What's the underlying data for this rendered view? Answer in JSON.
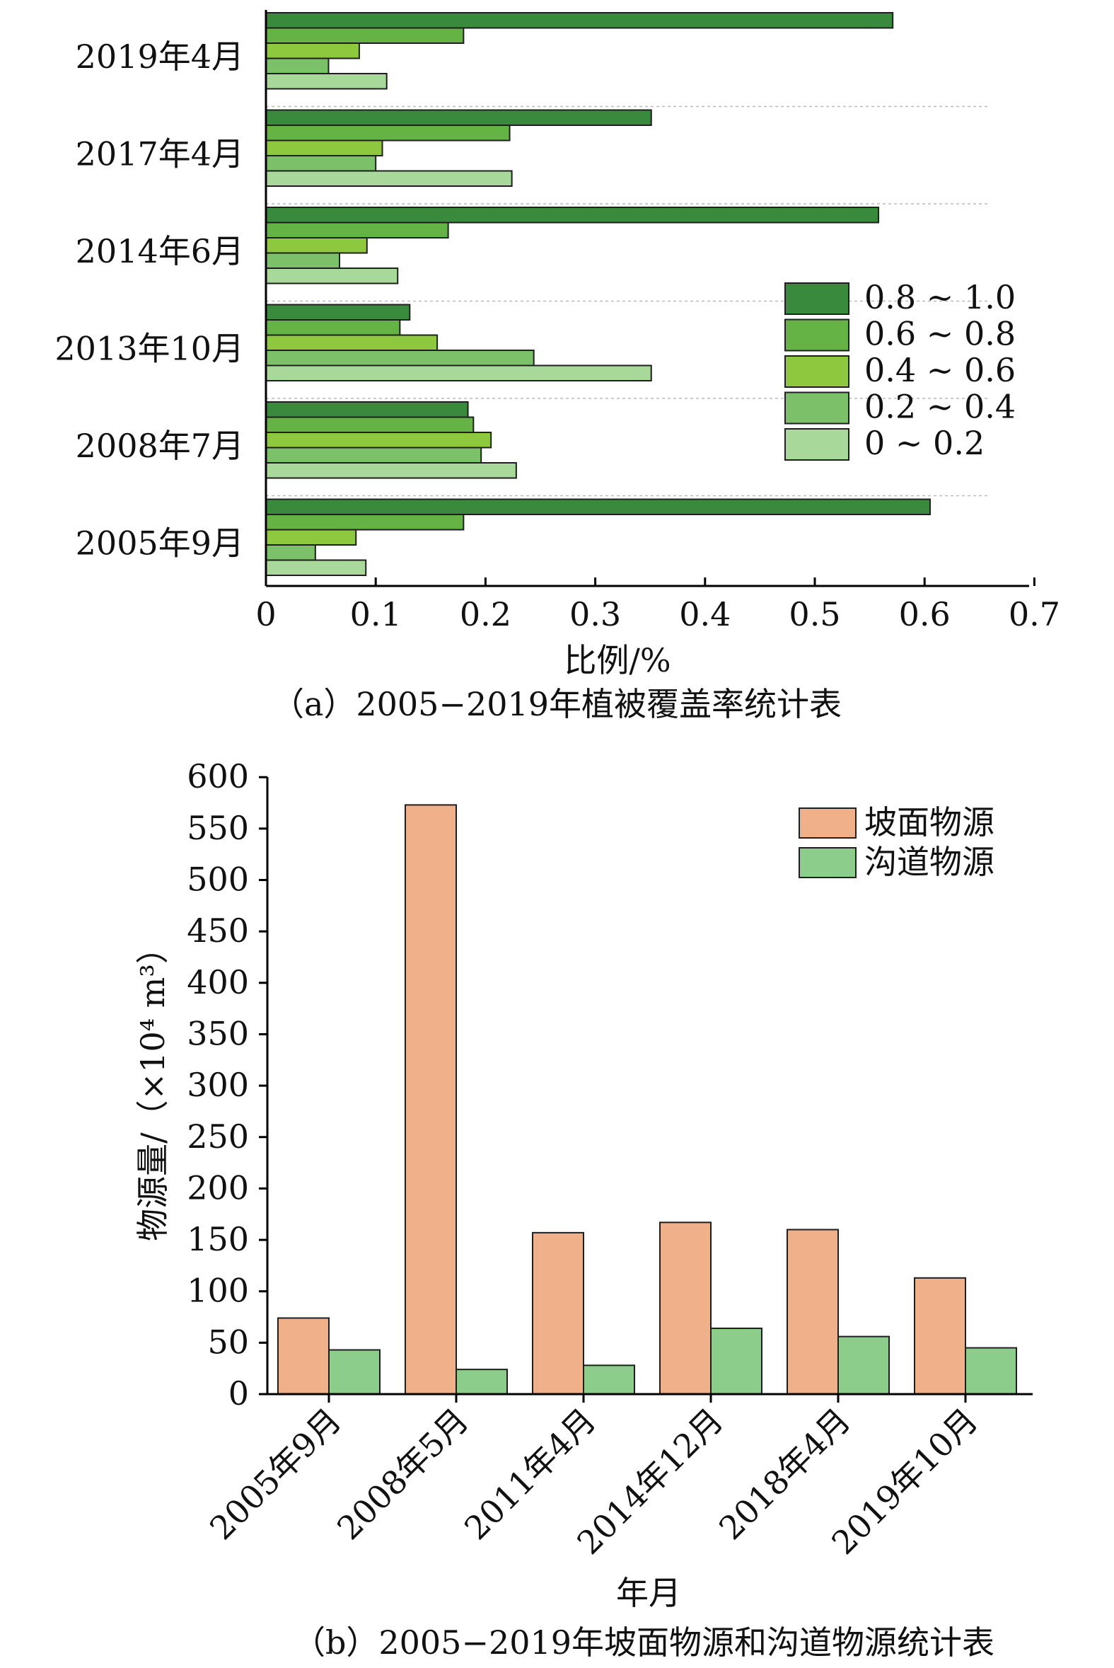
{
  "chart_data": [
    {
      "type": "bar",
      "orientation": "horizontal",
      "categories": [
        "2019年4月",
        "2017年4月",
        "2014年6月",
        "2013年10月",
        "2008年7月",
        "2005年9月"
      ],
      "series": [
        {
          "name": "0.8 ~ 1.0",
          "color": "#3a8a3e",
          "values": [
            0.571,
            0.351,
            0.558,
            0.131,
            0.184,
            0.605
          ]
        },
        {
          "name": "0.6 ~ 0.8",
          "color": "#65b345",
          "values": [
            0.18,
            0.222,
            0.166,
            0.122,
            0.189,
            0.18
          ]
        },
        {
          "name": "0.4 ~ 0.6",
          "color": "#8dc83f",
          "values": [
            0.085,
            0.106,
            0.092,
            0.156,
            0.205,
            0.082
          ]
        },
        {
          "name": "0.2 ~ 0.4",
          "color": "#7cc16a",
          "values": [
            0.057,
            0.1,
            0.067,
            0.244,
            0.196,
            0.045
          ]
        },
        {
          "name": "0 ~ 0.2",
          "color": "#a8d89a",
          "values": [
            0.11,
            0.224,
            0.12,
            0.351,
            0.228,
            0.091
          ]
        }
      ],
      "xticks": [
        "0",
        "0.1",
        "0.2",
        "0.3",
        "0.4",
        "0.5",
        "0.6",
        "0.7"
      ],
      "xlim": [
        0,
        0.7
      ],
      "xlabel": "比例/%",
      "ylabel": "",
      "caption": "（a）2005−2019年植被覆盖率统计表",
      "legend_position": "right-middle",
      "grid": "dashed separators between categories"
    },
    {
      "type": "bar",
      "orientation": "vertical",
      "categories": [
        "2005年9月",
        "2008年5月",
        "2011年4月",
        "2014年12月",
        "2018年4月",
        "2019年10月"
      ],
      "series": [
        {
          "name": "坡面物源",
          "color": "#f0b08a",
          "values": [
            74,
            573,
            157,
            167,
            160,
            113
          ]
        },
        {
          "name": "沟道物源",
          "color": "#8ccd8c",
          "values": [
            43,
            24,
            28,
            64,
            56,
            45
          ]
        }
      ],
      "yticks": [
        "0",
        "50",
        "100",
        "150",
        "200",
        "250",
        "300",
        "350",
        "400",
        "450",
        "500",
        "550",
        "600"
      ],
      "ylim": [
        0,
        600
      ],
      "xlabel": "年月",
      "ylabel": "物源量/（×10⁴ m³）",
      "caption": "（b）2005−2019年坡面物源和沟道物源统计表",
      "legend_position": "top-right",
      "grid": false
    }
  ]
}
